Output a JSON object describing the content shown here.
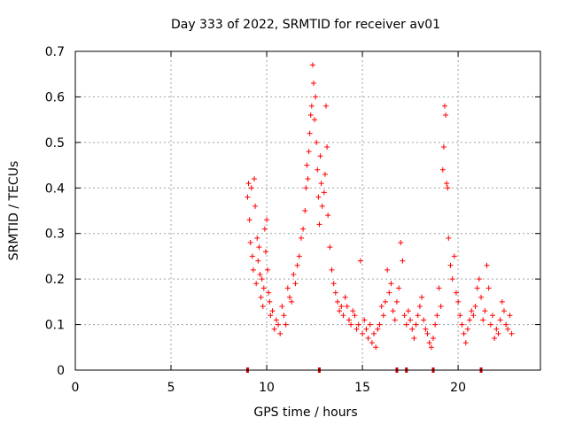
{
  "chart_data": {
    "type": "scatter",
    "title": "Day 333 of 2022, SRMTID for receiver av01",
    "xlabel": "GPS time / hours",
    "ylabel": "SRMTID / TECUs",
    "xlim": [
      0,
      24.3
    ],
    "ylim": [
      0,
      0.7
    ],
    "xticks": [
      0,
      5,
      10,
      15,
      20
    ],
    "xtick_labels": [
      "0",
      "5",
      "10",
      "15",
      "20"
    ],
    "yticks": [
      0,
      0.1,
      0.2,
      0.3,
      0.4,
      0.5,
      0.6,
      0.7
    ],
    "ytick_labels": [
      "0",
      "0.1",
      "0.2",
      "0.3",
      "0.4",
      "0.5",
      "0.6",
      "0.7"
    ],
    "grid": true,
    "marker": "+",
    "marker_color": "#ff0000",
    "series": [
      {
        "name": "SRMTID",
        "points": [
          [
            9.0,
            0.38
          ],
          [
            9.05,
            0.41
          ],
          [
            9.1,
            0.33
          ],
          [
            9.15,
            0.28
          ],
          [
            9.2,
            0.4
          ],
          [
            9.25,
            0.25
          ],
          [
            9.3,
            0.22
          ],
          [
            9.35,
            0.42
          ],
          [
            9.4,
            0.36
          ],
          [
            9.45,
            0.19
          ],
          [
            9.5,
            0.29
          ],
          [
            9.55,
            0.24
          ],
          [
            9.6,
            0.27
          ],
          [
            9.65,
            0.21
          ],
          [
            9.7,
            0.16
          ],
          [
            9.75,
            0.2
          ],
          [
            9.8,
            0.14
          ],
          [
            9.85,
            0.18
          ],
          [
            9.9,
            0.31
          ],
          [
            9.95,
            0.26
          ],
          [
            10.0,
            0.33
          ],
          [
            10.05,
            0.22
          ],
          [
            10.1,
            0.17
          ],
          [
            10.15,
            0.15
          ],
          [
            10.2,
            0.12
          ],
          [
            10.3,
            0.13
          ],
          [
            10.4,
            0.09
          ],
          [
            10.5,
            0.11
          ],
          [
            10.6,
            0.1
          ],
          [
            10.7,
            0.08
          ],
          [
            10.8,
            0.14
          ],
          [
            10.9,
            0.12
          ],
          [
            11.0,
            0.1
          ],
          [
            11.1,
            0.18
          ],
          [
            11.2,
            0.16
          ],
          [
            11.3,
            0.15
          ],
          [
            11.4,
            0.21
          ],
          [
            11.5,
            0.19
          ],
          [
            11.6,
            0.23
          ],
          [
            11.7,
            0.25
          ],
          [
            11.8,
            0.29
          ],
          [
            11.9,
            0.31
          ],
          [
            12.0,
            0.35
          ],
          [
            12.05,
            0.4
          ],
          [
            12.1,
            0.45
          ],
          [
            12.15,
            0.42
          ],
          [
            12.2,
            0.48
          ],
          [
            12.25,
            0.52
          ],
          [
            12.3,
            0.56
          ],
          [
            12.35,
            0.58
          ],
          [
            12.4,
            0.67
          ],
          [
            12.45,
            0.63
          ],
          [
            12.5,
            0.55
          ],
          [
            12.55,
            0.6
          ],
          [
            12.6,
            0.5
          ],
          [
            12.65,
            0.44
          ],
          [
            12.7,
            0.38
          ],
          [
            12.75,
            0.32
          ],
          [
            12.8,
            0.47
          ],
          [
            12.85,
            0.41
          ],
          [
            12.9,
            0.36
          ],
          [
            13.0,
            0.39
          ],
          [
            13.05,
            0.43
          ],
          [
            13.1,
            0.58
          ],
          [
            13.15,
            0.49
          ],
          [
            13.2,
            0.34
          ],
          [
            13.3,
            0.27
          ],
          [
            13.4,
            0.22
          ],
          [
            13.5,
            0.19
          ],
          [
            13.6,
            0.17
          ],
          [
            13.7,
            0.15
          ],
          [
            13.8,
            0.13
          ],
          [
            13.9,
            0.14
          ],
          [
            14.0,
            0.12
          ],
          [
            14.1,
            0.16
          ],
          [
            14.2,
            0.14
          ],
          [
            14.3,
            0.11
          ],
          [
            14.4,
            0.1
          ],
          [
            14.5,
            0.13
          ],
          [
            14.6,
            0.12
          ],
          [
            14.7,
            0.09
          ],
          [
            14.8,
            0.1
          ],
          [
            14.9,
            0.24
          ],
          [
            15.0,
            0.08
          ],
          [
            15.1,
            0.11
          ],
          [
            15.2,
            0.09
          ],
          [
            15.3,
            0.07
          ],
          [
            15.4,
            0.1
          ],
          [
            15.5,
            0.06
          ],
          [
            15.6,
            0.08
          ],
          [
            15.7,
            0.05
          ],
          [
            15.8,
            0.09
          ],
          [
            15.9,
            0.1
          ],
          [
            16.0,
            0.14
          ],
          [
            16.1,
            0.12
          ],
          [
            16.2,
            0.15
          ],
          [
            16.3,
            0.22
          ],
          [
            16.4,
            0.17
          ],
          [
            16.5,
            0.19
          ],
          [
            16.6,
            0.13
          ],
          [
            16.7,
            0.11
          ],
          [
            16.8,
            0.15
          ],
          [
            16.9,
            0.18
          ],
          [
            17.0,
            0.28
          ],
          [
            17.1,
            0.24
          ],
          [
            17.2,
            0.12
          ],
          [
            17.3,
            0.1
          ],
          [
            17.4,
            0.13
          ],
          [
            17.5,
            0.11
          ],
          [
            17.6,
            0.09
          ],
          [
            17.7,
            0.07
          ],
          [
            17.8,
            0.1
          ],
          [
            17.9,
            0.12
          ],
          [
            18.0,
            0.14
          ],
          [
            18.1,
            0.16
          ],
          [
            18.2,
            0.11
          ],
          [
            18.3,
            0.09
          ],
          [
            18.4,
            0.08
          ],
          [
            18.5,
            0.06
          ],
          [
            18.6,
            0.05
          ],
          [
            18.7,
            0.07
          ],
          [
            18.8,
            0.1
          ],
          [
            18.9,
            0.12
          ],
          [
            19.0,
            0.18
          ],
          [
            19.1,
            0.14
          ],
          [
            19.2,
            0.44
          ],
          [
            19.25,
            0.49
          ],
          [
            19.3,
            0.58
          ],
          [
            19.35,
            0.56
          ],
          [
            19.4,
            0.41
          ],
          [
            19.45,
            0.4
          ],
          [
            19.5,
            0.29
          ],
          [
            19.6,
            0.23
          ],
          [
            19.7,
            0.2
          ],
          [
            19.8,
            0.25
          ],
          [
            19.9,
            0.17
          ],
          [
            20.0,
            0.15
          ],
          [
            20.1,
            0.12
          ],
          [
            20.2,
            0.1
          ],
          [
            20.3,
            0.08
          ],
          [
            20.4,
            0.06
          ],
          [
            20.5,
            0.09
          ],
          [
            20.6,
            0.11
          ],
          [
            20.7,
            0.13
          ],
          [
            20.8,
            0.12
          ],
          [
            20.9,
            0.14
          ],
          [
            21.0,
            0.18
          ],
          [
            21.1,
            0.2
          ],
          [
            21.2,
            0.16
          ],
          [
            21.3,
            0.11
          ],
          [
            21.4,
            0.13
          ],
          [
            21.5,
            0.23
          ],
          [
            21.6,
            0.18
          ],
          [
            21.7,
            0.1
          ],
          [
            21.8,
            0.12
          ],
          [
            21.9,
            0.07
          ],
          [
            22.0,
            0.09
          ],
          [
            22.1,
            0.08
          ],
          [
            22.2,
            0.11
          ],
          [
            22.3,
            0.15
          ],
          [
            22.4,
            0.13
          ],
          [
            22.5,
            0.1
          ],
          [
            22.6,
            0.09
          ],
          [
            22.7,
            0.12
          ],
          [
            22.8,
            0.08
          ]
        ]
      }
    ],
    "rug_ticks_x": [
      9.0,
      12.75,
      16.8,
      17.3,
      18.7,
      21.2
    ]
  }
}
